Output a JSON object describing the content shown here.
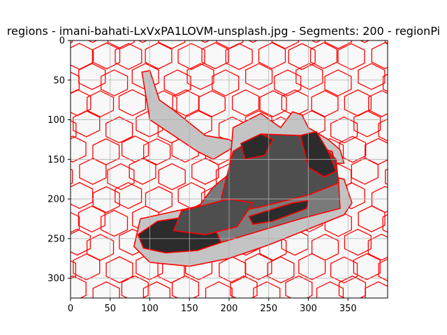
{
  "chart_data": {
    "type": "heatmap",
    "title": "regions - imani-bahati-LxVxPA1LOVM-unsplash.jpg - Segments: 200 - regionPi",
    "xlabel": "",
    "ylabel": "",
    "xlim": [
      0,
      400
    ],
    "ylim": [
      325,
      0
    ],
    "xticks": [
      0,
      50,
      100,
      150,
      200,
      250,
      300,
      350
    ],
    "yticks": [
      0,
      50,
      100,
      150,
      200,
      250,
      300
    ],
    "grid": true,
    "image_size": [
      400,
      325
    ],
    "segments": 200,
    "colors": {
      "background": "#f8f8f8",
      "boundary": "#ff0000",
      "light_gray": "#c4c4c4",
      "mid_gray": "#7a7a7a",
      "dark_gray": "#4e4e4e",
      "darkest": "#2c2c2c",
      "grid": "#b0b0b0"
    }
  }
}
